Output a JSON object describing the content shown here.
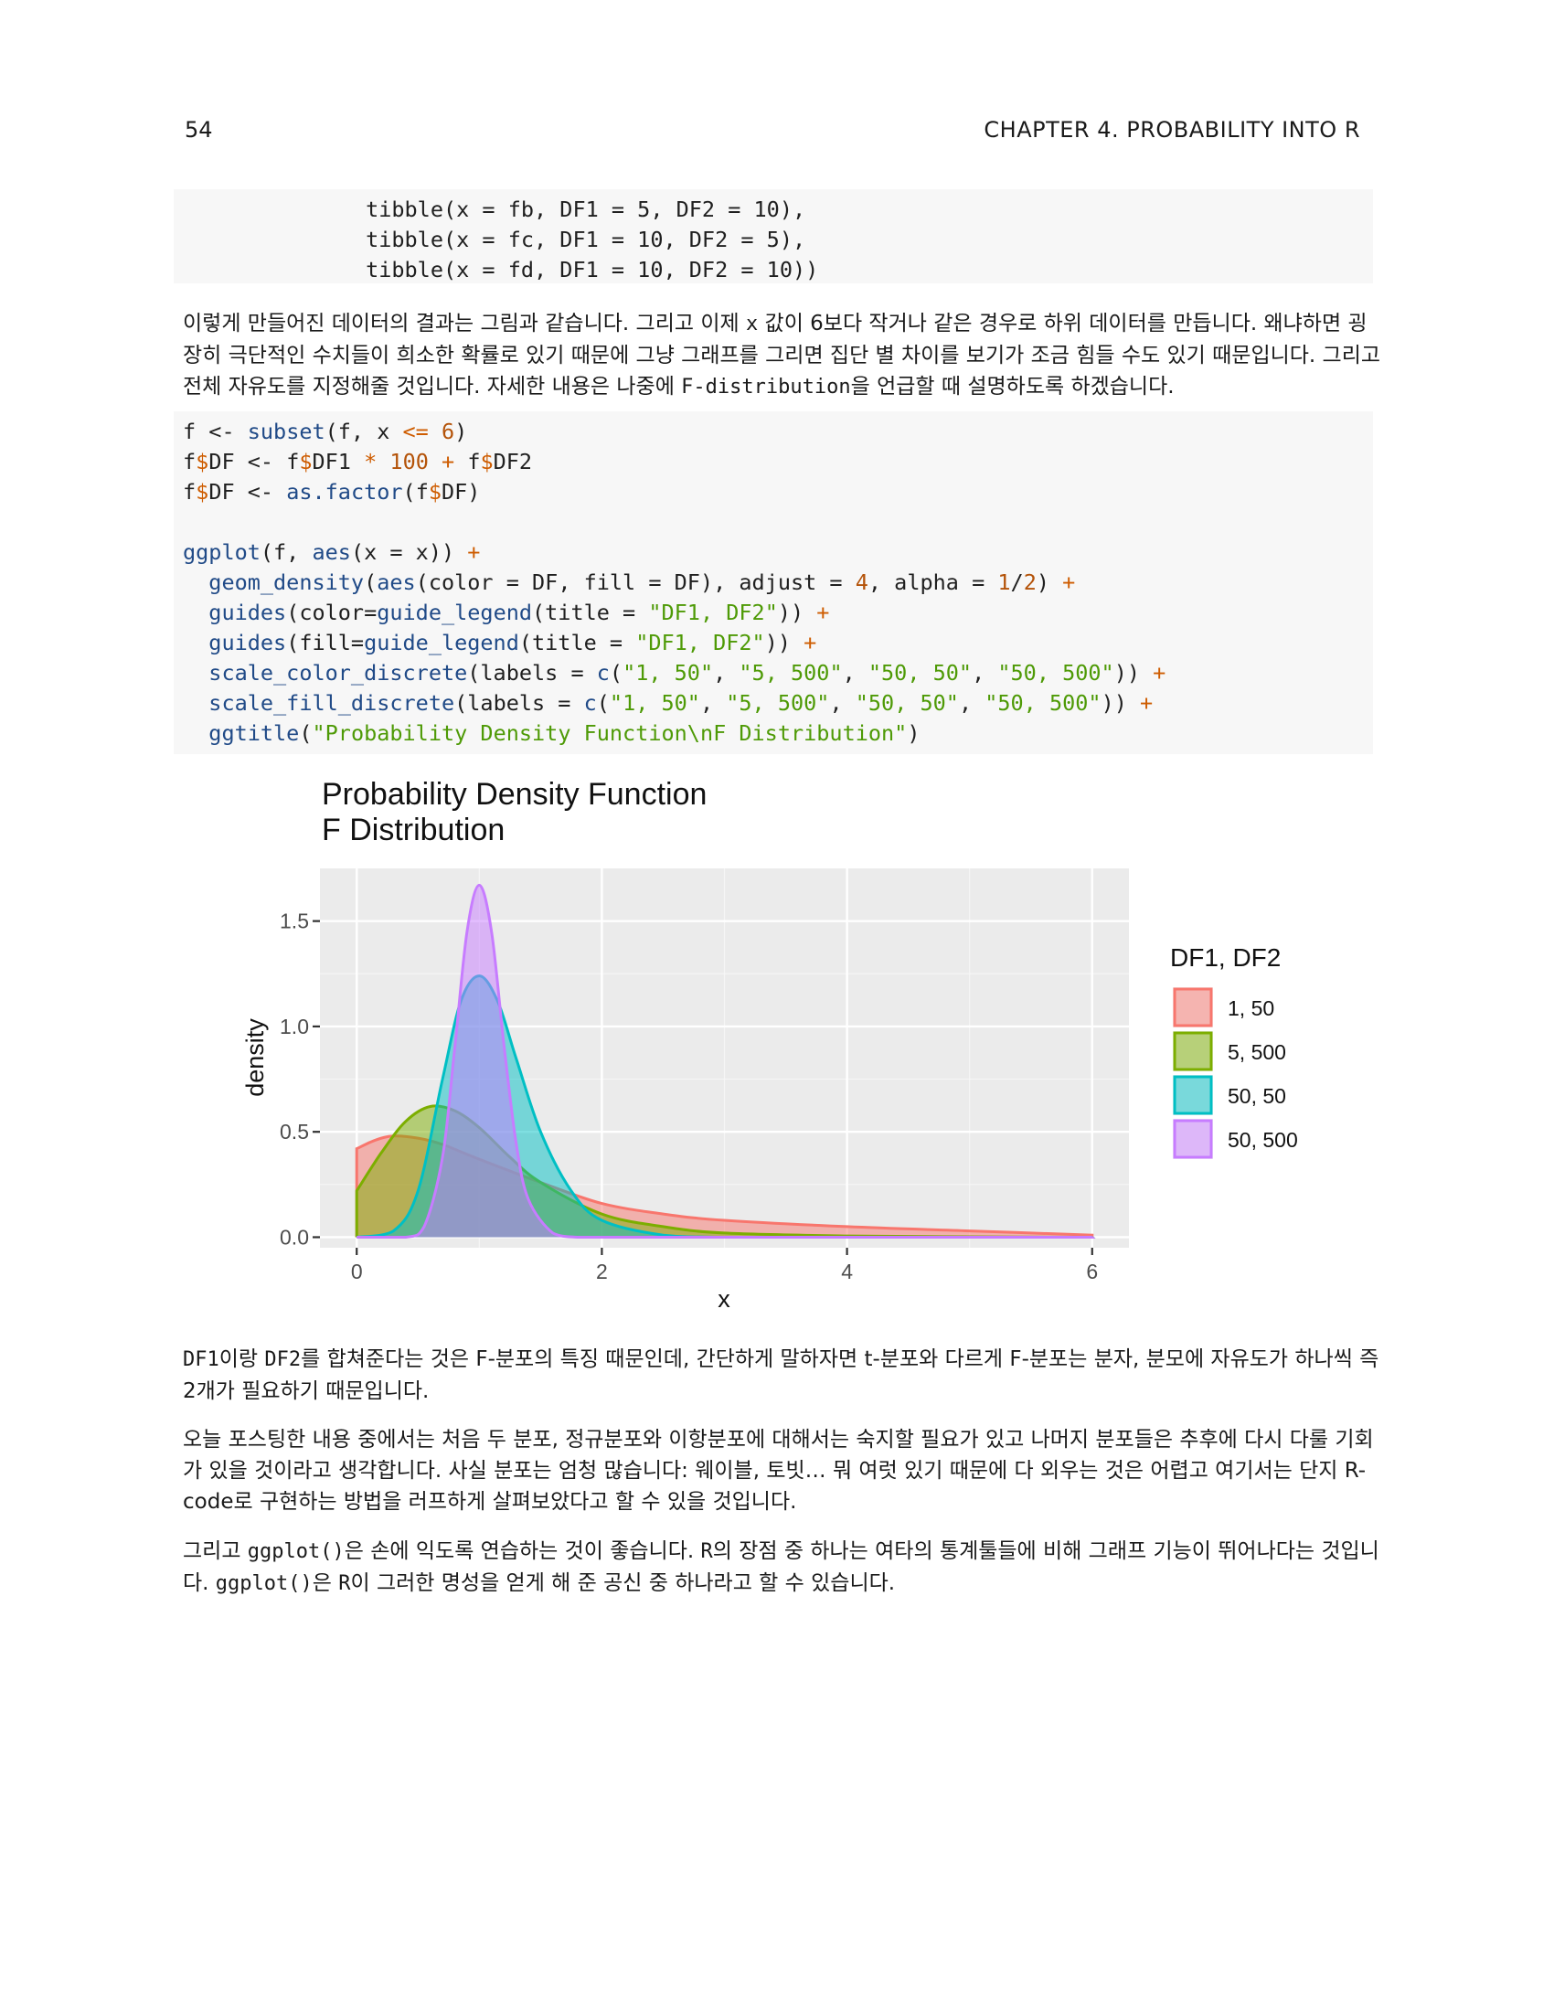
{
  "header": {
    "page_number": "54",
    "chapter": "CHAPTER 4.  PROBABILITY INTO R"
  },
  "code1": [
    "              tibble(x = fb, DF1 = 5, DF2 = 10),",
    "              tibble(x = fc, DF1 = 10, DF2 = 5),",
    "              tibble(x = fd, DF1 = 10, DF2 = 10))"
  ],
  "para1": {
    "s1": "이렇게 만들어진 데이터의 결과는 그림과 같습니다. 그리고 이제 ",
    "c1": "x",
    "s2": " 값이 6보다 작거나 같은 경우로 하위 데이터를 만듭니다. 왜냐하면 굉장히 극단적인 수치들이 희소한 확률로 있기 때문에 그냥 그래프를 그리면 집단 별 차이를 보기가 조금 힘들 수도 있기 때문입니다. 그리고 전체 자유도를 지정해줄 것입니다. 자세한 내용은 나중에 ",
    "c2": "F-distribution",
    "s3": "을 언급할 때 설명하도록 하겠습니다."
  },
  "code2": [
    "f <- subset(f, x <= 6)",
    "f$DF <- f$DF1 * 100 + f$DF2",
    "f$DF <- as.factor(f$DF)",
    "",
    "ggplot(f, aes(x = x)) +",
    "  geom_density(aes(color = DF, fill = DF), adjust = 4, alpha = 1/2) +",
    "  guides(color=guide_legend(title = \"DF1, DF2\")) +",
    "  guides(fill=guide_legend(title = \"DF1, DF2\")) +",
    "  scale_color_discrete(labels = c(\"1, 50\", \"5, 500\", \"50, 50\", \"50, 500\")) +",
    "  scale_fill_discrete(labels = c(\"1, 50\", \"5, 500\", \"50, 50\", \"50, 500\")) +",
    "  ggtitle(\"Probability Density Function\\nF Distribution\")"
  ],
  "chart_data": {
    "type": "area",
    "title": "Probability Density Function",
    "subtitle": "F Distribution",
    "xlabel": "x",
    "ylabel": "density",
    "xlim": [
      -0.3,
      6.3
    ],
    "ylim": [
      -0.05,
      1.75
    ],
    "xticks": [
      0,
      2,
      4,
      6
    ],
    "yticks": [
      0.0,
      0.5,
      1.0,
      1.5
    ],
    "ytick_labels": [
      "0.0",
      "0.5",
      "1.0",
      "1.5"
    ],
    "grid": true,
    "legend_title": "DF1, DF2",
    "legend_position": "right",
    "series": [
      {
        "name": "1, 50",
        "color": "#F8766D",
        "x": [
          0,
          0.15,
          0.3,
          0.5,
          0.7,
          1.0,
          1.5,
          2.0,
          2.5,
          3.0,
          4.0,
          5.0,
          6.0
        ],
        "values": [
          0.42,
          0.46,
          0.48,
          0.47,
          0.44,
          0.37,
          0.26,
          0.16,
          0.11,
          0.08,
          0.05,
          0.03,
          0.01
        ]
      },
      {
        "name": "5, 500",
        "color": "#7CAE00",
        "x": [
          0,
          0.2,
          0.4,
          0.6,
          0.8,
          1.0,
          1.25,
          1.5,
          2.0,
          2.5,
          3.0,
          4.0,
          5.0,
          6.0
        ],
        "values": [
          0.22,
          0.4,
          0.55,
          0.62,
          0.6,
          0.52,
          0.38,
          0.26,
          0.11,
          0.05,
          0.02,
          0.006,
          0.002,
          0.0
        ]
      },
      {
        "name": "50, 50",
        "color": "#00BFC4",
        "x": [
          0,
          0.3,
          0.5,
          0.7,
          0.85,
          1.0,
          1.15,
          1.3,
          1.5,
          1.75,
          2.0,
          2.5,
          3.0,
          4.0,
          6.0
        ],
        "values": [
          0.0,
          0.03,
          0.22,
          0.75,
          1.12,
          1.24,
          1.12,
          0.85,
          0.5,
          0.22,
          0.08,
          0.01,
          0.0,
          0.0,
          0.0
        ]
      },
      {
        "name": "50, 500",
        "color": "#C77CFF",
        "x": [
          0,
          0.4,
          0.55,
          0.7,
          0.8,
          0.9,
          1.0,
          1.1,
          1.2,
          1.3,
          1.4,
          1.6,
          1.8,
          2.0,
          3.0,
          6.0
        ],
        "values": [
          0.0,
          0.0,
          0.05,
          0.38,
          0.9,
          1.45,
          1.67,
          1.45,
          0.92,
          0.45,
          0.18,
          0.02,
          0.0,
          0.0,
          0.0,
          0.0
        ]
      }
    ]
  },
  "para2": {
    "c1": "DF1",
    "s1": "이랑 ",
    "c2": "DF2",
    "s2": "를 합쳐준다는 것은 F-분포의 특징 때문인데, 간단하게 말하자면 t-분포와 다르게 F-분포는 분자, 분모에 자유도가 하나씩 즉 2개가 필요하기 때문입니다."
  },
  "para3": "오늘 포스팅한 내용 중에서는 처음 두 분포, 정규분포와 이항분포에 대해서는 숙지할 필요가 있고 나머지 분포들은 추후에 다시 다룰 기회가 있을 것이라고 생각합니다. 사실 분포는 엄청 많습니다: 웨이블, 토빗… 뭐 여럿 있기 때문에 다 외우는 것은 어렵고 여기서는 단지 R-code로 구현하는 방법을 러프하게 살펴보았다고 할 수 있을 것입니다.",
  "para4": {
    "s1": "그리고 ",
    "c1": "ggplot()",
    "s2": "은 손에 익도록 연습하는 것이 좋습니다. ",
    "c2": "R",
    "s3": "의 장점 중 하나는 여타의 통계툴들에 비해 그래프 기능이 뛰어나다는 것입니다. ",
    "c3": "ggplot()",
    "s4": "은 ",
    "c4": "R",
    "s5": "이 그러한 명성을 얻게 해 준 공신 중 하나라고 할 수 있습니다."
  }
}
